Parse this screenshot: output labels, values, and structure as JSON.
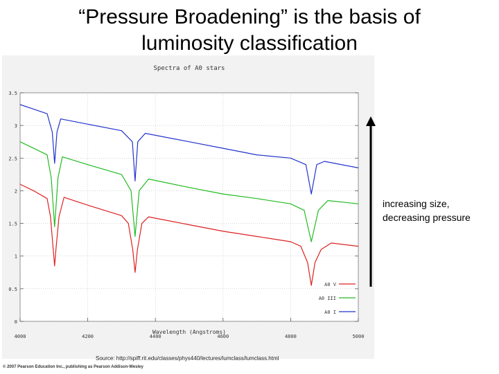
{
  "slide": {
    "title_line1": "“Pressure Broadening” is the basis of",
    "title_line2": "luminosity classification",
    "annotation_line1": "increasing size,",
    "annotation_line2": "decreasing pressure",
    "source": "Source: http://spiff.rit.edu/classes/phys440/lectures/lumclass/lumclass.html",
    "copyright": "© 2007 Pearson Education Inc., publishing as Pearson Addison-Wesley"
  },
  "chart_data": {
    "type": "line",
    "title": "Spectra of A0 stars",
    "xlabel": "Wavelength (Angstroms)",
    "ylabel": "",
    "xlim": [
      4000,
      5000
    ],
    "ylim": [
      0,
      3.5
    ],
    "xticks": [
      4000,
      4200,
      4400,
      4600,
      4800,
      5000
    ],
    "yticks": [
      0,
      0.5,
      1,
      1.5,
      2,
      2.5,
      3,
      3.5
    ],
    "xtick_labels": [
      "4000",
      "4200",
      "4400",
      "4600",
      "4800",
      "5000"
    ],
    "ytick_labels": [
      "0",
      "0.5",
      "1",
      "1.5",
      "2",
      "2.5",
      "3",
      "3.5"
    ],
    "legend_position": "bottom-right",
    "grid": true,
    "series": [
      {
        "name": "A0 V",
        "color": "#dd2020",
        "points": [
          [
            4000,
            2.1
          ],
          [
            4040,
            2.0
          ],
          [
            4080,
            1.88
          ],
          [
            4090,
            1.6
          ],
          [
            4098,
            1.1
          ],
          [
            4102,
            0.85
          ],
          [
            4106,
            1.1
          ],
          [
            4115,
            1.6
          ],
          [
            4130,
            1.9
          ],
          [
            4200,
            1.78
          ],
          [
            4300,
            1.62
          ],
          [
            4320,
            1.5
          ],
          [
            4333,
            1.1
          ],
          [
            4340,
            0.75
          ],
          [
            4347,
            1.1
          ],
          [
            4360,
            1.5
          ],
          [
            4380,
            1.6
          ],
          [
            4500,
            1.48
          ],
          [
            4600,
            1.38
          ],
          [
            4700,
            1.3
          ],
          [
            4800,
            1.22
          ],
          [
            4830,
            1.15
          ],
          [
            4850,
            0.9
          ],
          [
            4861,
            0.55
          ],
          [
            4872,
            0.9
          ],
          [
            4890,
            1.1
          ],
          [
            4920,
            1.2
          ],
          [
            5000,
            1.15
          ]
        ]
      },
      {
        "name": "A0 III",
        "color": "#22bb22",
        "points": [
          [
            4000,
            2.75
          ],
          [
            4040,
            2.65
          ],
          [
            4080,
            2.55
          ],
          [
            4092,
            2.2
          ],
          [
            4102,
            1.45
          ],
          [
            4112,
            2.2
          ],
          [
            4125,
            2.52
          ],
          [
            4200,
            2.4
          ],
          [
            4300,
            2.25
          ],
          [
            4328,
            2.0
          ],
          [
            4340,
            1.3
          ],
          [
            4352,
            2.0
          ],
          [
            4380,
            2.18
          ],
          [
            4500,
            2.05
          ],
          [
            4600,
            1.95
          ],
          [
            4700,
            1.88
          ],
          [
            4800,
            1.8
          ],
          [
            4840,
            1.7
          ],
          [
            4861,
            1.22
          ],
          [
            4882,
            1.7
          ],
          [
            4910,
            1.85
          ],
          [
            5000,
            1.8
          ]
        ]
      },
      {
        "name": "A0 I",
        "color": "#2233cc",
        "points": [
          [
            4000,
            3.32
          ],
          [
            4040,
            3.25
          ],
          [
            4080,
            3.18
          ],
          [
            4095,
            2.9
          ],
          [
            4102,
            2.42
          ],
          [
            4109,
            2.9
          ],
          [
            4120,
            3.1
          ],
          [
            4200,
            3.02
          ],
          [
            4300,
            2.92
          ],
          [
            4332,
            2.75
          ],
          [
            4340,
            2.15
          ],
          [
            4348,
            2.75
          ],
          [
            4370,
            2.88
          ],
          [
            4500,
            2.75
          ],
          [
            4600,
            2.65
          ],
          [
            4700,
            2.55
          ],
          [
            4800,
            2.5
          ],
          [
            4845,
            2.4
          ],
          [
            4861,
            1.95
          ],
          [
            4877,
            2.4
          ],
          [
            4900,
            2.45
          ],
          [
            5000,
            2.35
          ]
        ]
      }
    ]
  }
}
